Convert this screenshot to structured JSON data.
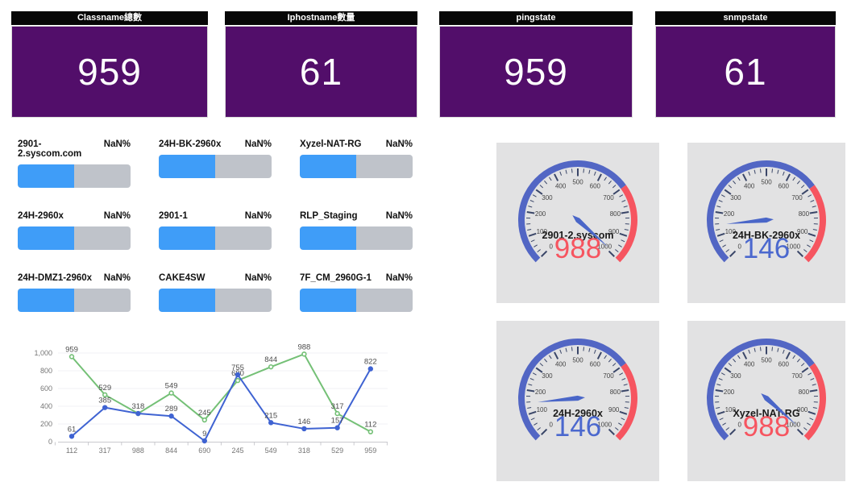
{
  "stat_cards": [
    {
      "title": "Classname總數",
      "value": "959"
    },
    {
      "title": "Iphostname數量",
      "value": "61"
    },
    {
      "title": "pingstate",
      "value": "959"
    },
    {
      "title": "snmpstate",
      "value": "61"
    }
  ],
  "progress_section": {
    "percent_text": "NaN%",
    "fill_ratio": 0.5,
    "items": [
      {
        "label": "2901-2.syscom.com"
      },
      {
        "label": "24H-BK-2960x"
      },
      {
        "label": "Xyzel-NAT-RG"
      },
      {
        "label": "24H-2960x"
      },
      {
        "label": "2901-1"
      },
      {
        "label": "RLP_Staging"
      },
      {
        "label": "24H-DMZ1-2960x"
      },
      {
        "label": "CAKE4SW"
      },
      {
        "label": "7F_CM_2960G-1"
      }
    ]
  },
  "chart_data": {
    "type": "line",
    "x_labels": [
      "112",
      "317",
      "988",
      "844",
      "690",
      "245",
      "549",
      "318",
      "529",
      "959"
    ],
    "y_ticks": {
      "labels": [
        "0",
        "200",
        "400",
        "600",
        "800",
        "1,000"
      ],
      "values": [
        0,
        200,
        400,
        600,
        800,
        1000
      ]
    },
    "ylim": [
      0,
      1000
    ],
    "grid": true,
    "legend": false,
    "series": [
      {
        "name": "green",
        "values": [
          959,
          529,
          318,
          549,
          245,
          690,
          844,
          988,
          317,
          112
        ],
        "labels": [
          "959",
          "529",
          "318",
          "549",
          "245",
          "690",
          "844",
          "988",
          "317",
          "112"
        ]
      },
      {
        "name": "blue",
        "values": [
          61,
          385,
          318,
          289,
          9,
          755,
          215,
          146,
          157,
          822
        ],
        "labels": [
          "61",
          "385",
          "",
          "289",
          "9",
          "755",
          "215",
          "146",
          "157",
          "822"
        ]
      }
    ]
  },
  "gauge_section": {
    "scale": {
      "min": 0,
      "max": 1000,
      "major_step": 100,
      "minor_step": 25,
      "threshold": 700,
      "start_angle": 225,
      "end_angle": -45
    },
    "items": [
      {
        "name": "2901-2.syscom",
        "value": 988,
        "display": "988",
        "state": "alert"
      },
      {
        "name": "24H-BK-2960x",
        "value": 146,
        "display": "146",
        "state": "ok"
      },
      {
        "name": "24H-2960x",
        "value": 146,
        "display": "146",
        "state": "ok"
      },
      {
        "name": "Xyzel-NAT-RG",
        "value": 988,
        "display": "988",
        "state": "alert"
      }
    ]
  },
  "colors": {
    "purple": "#520e6a",
    "header_bg": "#070707",
    "header_text": "#ffffff",
    "bar_fill": "#3f9df8",
    "bar_track": "#bfc3ca",
    "panel_bg": "#e2e2e3",
    "band_ok": "#5266c4",
    "band_alert": "#f65560",
    "needle": "#4a66c8",
    "tick": "#3a4668",
    "gauge_number": "#444444",
    "value_ok": "#4b68ce",
    "value_alert": "#f65560",
    "line_green": "#74c076",
    "line_blue": "#3f63d2",
    "axis_text": "#767676",
    "data_label": "#4d4d4d",
    "grid_line": "#f0f1f5",
    "axis_line": "#c9c9ce"
  }
}
